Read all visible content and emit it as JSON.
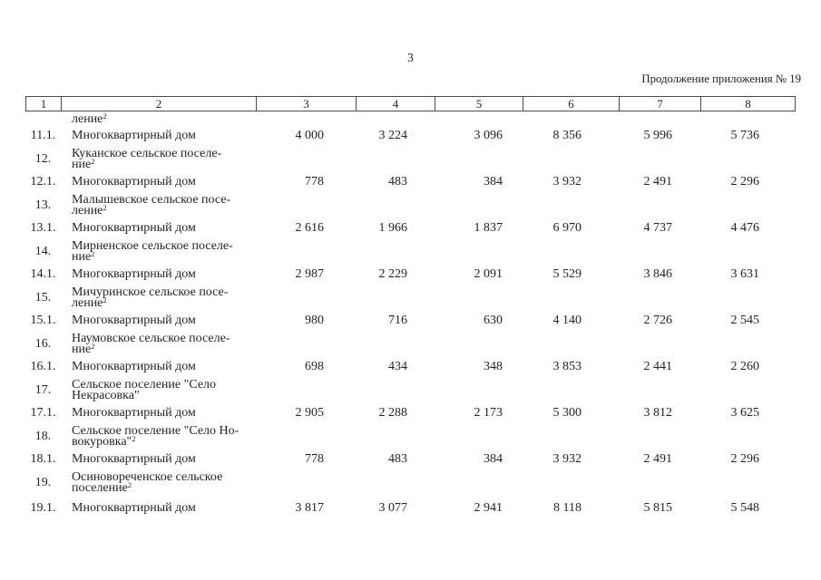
{
  "page": {
    "number": "3",
    "continuation_note": "Продолжение приложения № 19"
  },
  "table": {
    "column_headers": [
      "1",
      "2",
      "3",
      "4",
      "5",
      "6",
      "7",
      "8"
    ],
    "rows": [
      {
        "num": "",
        "lines": [
          {
            "t": "ление",
            "sup": "2"
          }
        ],
        "values": [
          "",
          "",
          "",
          "",
          "",
          ""
        ]
      },
      {
        "num": "11.1.",
        "lines": [
          {
            "t": "Многоквартирный дом"
          }
        ],
        "values": [
          "4 000",
          "3 224",
          "3 096",
          "8 356",
          "5 996",
          "5 736"
        ]
      },
      {
        "num": "12.",
        "lines": [
          {
            "t": "Куканское сельское поселе-"
          },
          {
            "t": "ние",
            "sup": "2"
          }
        ],
        "values": [
          "",
          "",
          "",
          "",
          "",
          ""
        ]
      },
      {
        "num": "12.1.",
        "lines": [
          {
            "t": "Многоквартирный дом"
          }
        ],
        "values": [
          "778",
          "483",
          "384",
          "3 932",
          "2 491",
          "2 296"
        ]
      },
      {
        "num": "13.",
        "lines": [
          {
            "t": "Малышевское сельское посе-"
          },
          {
            "t": "ление",
            "sup": "2"
          }
        ],
        "values": [
          "",
          "",
          "",
          "",
          "",
          ""
        ]
      },
      {
        "num": "13.1.",
        "lines": [
          {
            "t": "Многоквартирный дом"
          }
        ],
        "values": [
          "2 616",
          "1 966",
          "1 837",
          "6 970",
          "4 737",
          "4 476"
        ]
      },
      {
        "num": "14.",
        "lines": [
          {
            "t": "Мирненское сельское поселе-"
          },
          {
            "t": "ние",
            "sup": "2"
          }
        ],
        "values": [
          "",
          "",
          "",
          "",
          "",
          ""
        ]
      },
      {
        "num": "14.1.",
        "lines": [
          {
            "t": "Многоквартирный дом"
          }
        ],
        "values": [
          "2 987",
          "2 229",
          "2 091",
          "5 529",
          "3 846",
          "3 631"
        ]
      },
      {
        "num": "15.",
        "lines": [
          {
            "t": "Мичуринское сельское посе-"
          },
          {
            "t": "ление",
            "sup": "2"
          }
        ],
        "values": [
          "",
          "",
          "",
          "",
          "",
          ""
        ]
      },
      {
        "num": "15.1.",
        "lines": [
          {
            "t": "Многоквартирный дом"
          }
        ],
        "values": [
          "980",
          "716",
          "630",
          "4 140",
          "2 726",
          "2 545"
        ]
      },
      {
        "num": "16.",
        "lines": [
          {
            "t": "Наумовское сельское поселе-"
          },
          {
            "t": "ние",
            "sup": "2"
          }
        ],
        "values": [
          "",
          "",
          "",
          "",
          "",
          ""
        ]
      },
      {
        "num": "16.1.",
        "lines": [
          {
            "t": "Многоквартирный дом"
          }
        ],
        "values": [
          "698",
          "434",
          "348",
          "3 853",
          "2 441",
          "2 260"
        ]
      },
      {
        "num": "17.",
        "lines": [
          {
            "t": "Сельское поселение \"Село"
          },
          {
            "t": "Некрасовка\""
          }
        ],
        "values": [
          "",
          "",
          "",
          "",
          "",
          ""
        ]
      },
      {
        "num": "17.1.",
        "lines": [
          {
            "t": "Многоквартирный дом"
          }
        ],
        "values": [
          "2 905",
          "2 288",
          "2 173",
          "5 300",
          "3 812",
          "3 625"
        ]
      },
      {
        "num": "18.",
        "lines": [
          {
            "t": "Сельское поселение \"Село Но-"
          },
          {
            "t": "вокуровка\"",
            "sup": "2"
          }
        ],
        "values": [
          "",
          "",
          "",
          "",
          "",
          ""
        ]
      },
      {
        "num": "18.1.",
        "lines": [
          {
            "t": "Многоквартирный дом"
          }
        ],
        "values": [
          "778",
          "483",
          "384",
          "3 932",
          "2 491",
          "2 296"
        ]
      },
      {
        "num": "19.",
        "lines": [
          {
            "t": "Осиновореченское сельское"
          },
          {
            "t": "поселение",
            "sup": "2"
          }
        ],
        "values": [
          "",
          "",
          "",
          "",
          "",
          ""
        ]
      },
      {
        "num": "19.1.",
        "lines": [
          {
            "t": "Многоквартирный дом"
          }
        ],
        "values": [
          "3 817",
          "3 077",
          "2 941",
          "8 118",
          "5 815",
          "5 548"
        ]
      }
    ]
  }
}
